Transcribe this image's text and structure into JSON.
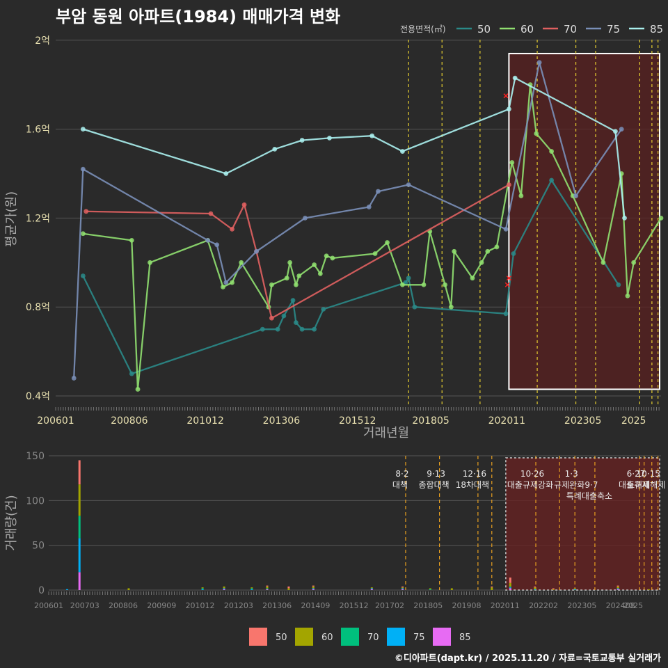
{
  "title": "부암 동원 아파트(1984) 매매가격 변화",
  "credit": "©디아파트(dapt.kr) / 2025.11.20 / 자료=국토교통부 실거래가",
  "legend_top": {
    "label": "전용면적(㎡)",
    "entries": [
      {
        "name": "50",
        "color": "#2a8a88"
      },
      {
        "name": "60",
        "color": "#90e070"
      },
      {
        "name": "70",
        "color": "#e06060"
      },
      {
        "name": "75",
        "color": "#7a8fb8"
      },
      {
        "name": "85",
        "color": "#aaf0ee"
      }
    ]
  },
  "legend_bottom": [
    {
      "name": "50",
      "color": "#f8766d"
    },
    {
      "name": "60",
      "color": "#a3a500"
    },
    {
      "name": "70",
      "color": "#00bf7d"
    },
    {
      "name": "75",
      "color": "#00b0f6"
    },
    {
      "name": "85",
      "color": "#e76bf3"
    }
  ],
  "colors": {
    "vline": "#e8d030",
    "highlight_fill": "#5a2020",
    "grid": "#555555",
    "axis_text": "#e8e0b0"
  },
  "chart_data": [
    {
      "type": "line",
      "title": "부암 동원 아파트(1984) 매매가격 변화",
      "xlabel": "거래년월",
      "ylabel": "평균가(원)",
      "xlim": [
        2006.0,
        2025.9
      ],
      "ylim": [
        0.35,
        2.04
      ],
      "x_tick_values": [
        2006.0,
        2008.42,
        2010.92,
        2013.42,
        2015.92,
        2018.33,
        2020.83,
        2023.33,
        2025.0
      ],
      "x_tick_labels": [
        "200601",
        "200806",
        "201012",
        "201306",
        "201512",
        "201805",
        "202011",
        "202305",
        "2025"
      ],
      "y_tick_values": [
        0.4,
        0.8,
        1.2,
        1.6,
        2.0
      ],
      "y_tick_labels": [
        "0.4억",
        "0.8억",
        "1.2억",
        "1.6억",
        "2억"
      ],
      "event_lines": [
        2017.6,
        2018.7,
        2019.95,
        2021.83,
        2023.1,
        2023.75,
        2025.2,
        2025.6,
        2025.8
      ],
      "highlight_range": {
        "x": [
          2020.9,
          2025.9
        ],
        "y": [
          0.43,
          1.94
        ]
      },
      "series": [
        {
          "name": "50",
          "points": [
            [
              2006.9,
              0.94
            ],
            [
              2008.5,
              0.5
            ],
            [
              2012.8,
              0.7
            ],
            [
              2013.3,
              0.7
            ],
            [
              2013.5,
              0.76
            ],
            [
              2013.8,
              0.83
            ],
            [
              2013.9,
              0.73
            ],
            [
              2014.1,
              0.7
            ],
            [
              2014.5,
              0.7
            ],
            [
              2014.8,
              0.79
            ],
            [
              2017.5,
              0.91
            ],
            [
              2017.6,
              0.93
            ],
            [
              2017.8,
              0.8
            ],
            [
              2020.8,
              0.77
            ],
            [
              2021.05,
              1.04
            ],
            [
              2022.3,
              1.37
            ],
            [
              2024.5,
              0.9
            ]
          ]
        },
        {
          "name": "60",
          "points": [
            [
              2006.9,
              1.13
            ],
            [
              2008.5,
              1.1
            ],
            [
              2008.7,
              0.43
            ],
            [
              2009.1,
              1.0
            ],
            [
              2011.0,
              1.1
            ],
            [
              2011.5,
              0.89
            ],
            [
              2011.8,
              0.91
            ],
            [
              2012.1,
              1.0
            ],
            [
              2013.0,
              0.8
            ],
            [
              2013.1,
              0.9
            ],
            [
              2013.6,
              0.93
            ],
            [
              2013.7,
              1.0
            ],
            [
              2013.9,
              0.9
            ],
            [
              2014.0,
              0.94
            ],
            [
              2014.5,
              0.99
            ],
            [
              2014.7,
              0.95
            ],
            [
              2014.9,
              1.03
            ],
            [
              2015.1,
              1.02
            ],
            [
              2016.5,
              1.04
            ],
            [
              2016.9,
              1.09
            ],
            [
              2017.4,
              0.9
            ],
            [
              2018.1,
              0.9
            ],
            [
              2018.3,
              1.14
            ],
            [
              2018.8,
              0.9
            ],
            [
              2019.0,
              0.8
            ],
            [
              2019.1,
              1.05
            ],
            [
              2019.7,
              0.93
            ],
            [
              2020.0,
              1.0
            ],
            [
              2020.2,
              1.05
            ],
            [
              2020.5,
              1.07
            ],
            [
              2021.0,
              1.45
            ],
            [
              2021.3,
              1.3
            ],
            [
              2021.6,
              1.8
            ],
            [
              2021.8,
              1.58
            ],
            [
              2022.3,
              1.5
            ],
            [
              2023.0,
              1.3
            ],
            [
              2024.0,
              1.0
            ],
            [
              2024.6,
              1.4
            ],
            [
              2024.8,
              0.85
            ],
            [
              2025.0,
              1.0
            ],
            [
              2025.9,
              1.2
            ]
          ]
        },
        {
          "name": "70",
          "points": [
            [
              2007.0,
              1.23
            ],
            [
              2011.1,
              1.22
            ],
            [
              2011.8,
              1.15
            ],
            [
              2012.2,
              1.26
            ],
            [
              2012.6,
              1.05
            ],
            [
              2013.1,
              0.75
            ],
            [
              2020.9,
              1.35
            ]
          ]
        },
        {
          "name": "75",
          "points": [
            [
              2006.6,
              0.48
            ],
            [
              2006.9,
              1.42
            ],
            [
              2011.0,
              1.1
            ],
            [
              2011.3,
              1.08
            ],
            [
              2011.6,
              0.91
            ],
            [
              2012.6,
              1.05
            ],
            [
              2014.2,
              1.2
            ],
            [
              2016.3,
              1.25
            ],
            [
              2016.6,
              1.32
            ],
            [
              2017.6,
              1.35
            ],
            [
              2020.8,
              1.15
            ],
            [
              2021.9,
              1.9
            ],
            [
              2023.1,
              1.3
            ],
            [
              2024.6,
              1.6
            ]
          ]
        },
        {
          "name": "85",
          "points": [
            [
              2006.9,
              1.6
            ],
            [
              2011.6,
              1.4
            ],
            [
              2013.2,
              1.51
            ],
            [
              2014.1,
              1.55
            ],
            [
              2015.0,
              1.56
            ],
            [
              2016.4,
              1.57
            ],
            [
              2017.4,
              1.5
            ],
            [
              2020.9,
              1.69
            ],
            [
              2021.1,
              1.83
            ],
            [
              2024.4,
              1.59
            ],
            [
              2024.7,
              1.2
            ]
          ]
        }
      ],
      "red_marks": [
        [
          2020.8,
          1.75
        ],
        [
          2020.9,
          0.93
        ],
        [
          2020.85,
          0.9
        ]
      ]
    },
    {
      "type": "bar",
      "xlabel": "",
      "ylabel": "거래량(건)",
      "xlim": [
        2006.0,
        2025.9
      ],
      "ylim": [
        0,
        150
      ],
      "x_tick_values": [
        2006.0,
        2007.17,
        2008.42,
        2009.67,
        2010.92,
        2012.17,
        2013.42,
        2014.67,
        2015.92,
        2017.08,
        2018.33,
        2019.58,
        2020.83,
        2022.08,
        2023.33,
        2024.58,
        2025.0
      ],
      "x_tick_labels": [
        "200601",
        "200703",
        "200806",
        "200909",
        "201012",
        "201203",
        "201306",
        "201409",
        "201512",
        "201702",
        "201805",
        "201908",
        "202011",
        "202202",
        "202305",
        "202408",
        "2025"
      ],
      "y_tick_values": [
        0,
        50,
        100,
        150
      ],
      "y_tick_labels": [
        "0",
        "50",
        "100",
        "150"
      ],
      "event_lines": [
        2017.6,
        2018.7,
        2019.95,
        2020.4,
        2021.83,
        2022.6,
        2023.1,
        2023.75,
        2025.2,
        2025.35,
        2025.6,
        2025.8
      ],
      "highlight_range": {
        "x": [
          2020.9,
          2025.9
        ]
      },
      "events": [
        {
          "x": 2017.6,
          "date": "8·2",
          "label": "대책"
        },
        {
          "x": 2018.7,
          "date": "9·13",
          "label": "종합대책"
        },
        {
          "x": 2019.95,
          "date": "12·16",
          "label": "18차대책"
        },
        {
          "x": 2021.83,
          "date": "10·26",
          "label": "대출규제강화"
        },
        {
          "x": 2023.1,
          "date": "1·3",
          "label": "규제완화"
        },
        {
          "x": 2023.75,
          "date": "9·7",
          "label": "특례대출축소"
        },
        {
          "x": 2025.2,
          "date": "6·27",
          "label": "대출규제"
        },
        {
          "x": 2025.6,
          "date": "10·15",
          "label": "토허제해제"
        }
      ],
      "stacks": [
        {
          "x": 2007.0,
          "values": {
            "50": 27,
            "60": 35,
            "70": 25,
            "75": 38,
            "85": 20
          }
        },
        {
          "x": 2006.6,
          "values": {
            "50": 0,
            "60": 0,
            "70": 0,
            "75": 1,
            "85": 0
          }
        },
        {
          "x": 2008.6,
          "values": {
            "50": 0,
            "60": 2,
            "70": 0,
            "75": 0,
            "85": 0
          }
        },
        {
          "x": 2011.0,
          "values": {
            "50": 0,
            "60": 1,
            "70": 1,
            "75": 1,
            "85": 0
          }
        },
        {
          "x": 2011.7,
          "values": {
            "50": 0,
            "60": 2,
            "70": 0,
            "75": 1,
            "85": 1
          }
        },
        {
          "x": 2012.6,
          "values": {
            "50": 0,
            "60": 1,
            "70": 1,
            "75": 1,
            "85": 0
          }
        },
        {
          "x": 2013.1,
          "values": {
            "50": 1,
            "60": 2,
            "70": 1,
            "75": 0,
            "85": 1
          }
        },
        {
          "x": 2013.8,
          "values": {
            "50": 2,
            "60": 2,
            "70": 0,
            "75": 0,
            "85": 0
          }
        },
        {
          "x": 2014.6,
          "values": {
            "50": 1,
            "60": 2,
            "70": 0,
            "75": 1,
            "85": 1
          }
        },
        {
          "x": 2016.5,
          "values": {
            "50": 0,
            "60": 1,
            "70": 0,
            "75": 1,
            "85": 1
          }
        },
        {
          "x": 2017.5,
          "values": {
            "50": 1,
            "60": 1,
            "70": 0,
            "75": 1,
            "85": 1
          }
        },
        {
          "x": 2018.4,
          "values": {
            "50": 0,
            "60": 1,
            "70": 1,
            "75": 0,
            "85": 0
          }
        },
        {
          "x": 2019.1,
          "values": {
            "50": 0,
            "60": 2,
            "70": 0,
            "75": 0,
            "85": 0
          }
        },
        {
          "x": 2020.4,
          "values": {
            "50": 1,
            "60": 3,
            "70": 0,
            "75": 0,
            "85": 0
          }
        },
        {
          "x": 2021.0,
          "values": {
            "50": 6,
            "60": 4,
            "70": 1,
            "75": 1,
            "85": 2
          }
        },
        {
          "x": 2021.8,
          "values": {
            "50": 1,
            "60": 2,
            "70": 0,
            "75": 1,
            "85": 0
          }
        },
        {
          "x": 2022.4,
          "values": {
            "50": 1,
            "60": 1,
            "70": 0,
            "75": 0,
            "85": 0
          }
        },
        {
          "x": 2023.1,
          "values": {
            "50": 0,
            "60": 1,
            "70": 0,
            "75": 1,
            "85": 0
          }
        },
        {
          "x": 2024.5,
          "values": {
            "50": 1,
            "60": 2,
            "70": 0,
            "75": 1,
            "85": 1
          }
        },
        {
          "x": 2025.5,
          "values": {
            "50": 0,
            "60": 1,
            "70": 0,
            "75": 0,
            "85": 0
          }
        }
      ]
    }
  ]
}
